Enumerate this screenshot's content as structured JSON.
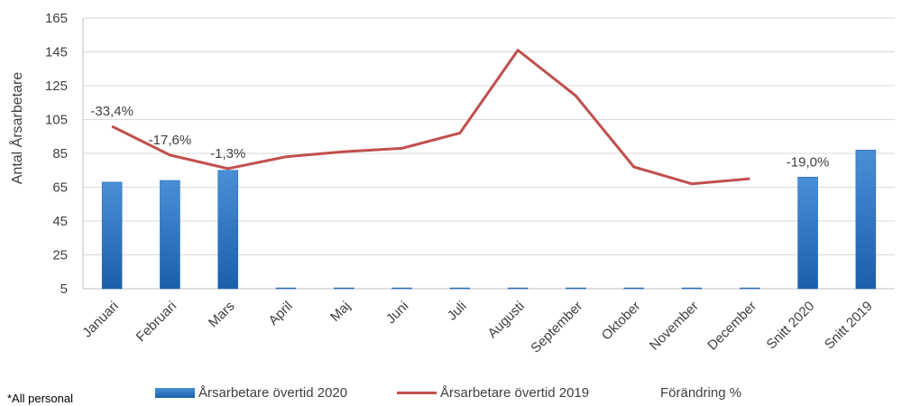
{
  "footnote": "*All personal",
  "legend": {
    "bar_label": "Årsarbetare övertid 2020",
    "line_label": "Årsarbetare övertid  2019",
    "change_label": "Förändring %"
  },
  "colors": {
    "bar": "#2e75c8",
    "line": "#c0504d",
    "grid": "#d9d9d9"
  },
  "chart_data": {
    "type": "bar",
    "ylabel": "Antal Årsarbetare",
    "ylim": [
      5,
      165
    ],
    "yticks": [
      5,
      25,
      45,
      65,
      85,
      105,
      125,
      145,
      165
    ],
    "categories": [
      "Januari",
      "Februari",
      "Mars",
      "April",
      "Maj",
      "Juni",
      "Juli",
      "Augusti",
      "September",
      "Oktober",
      "November",
      "December",
      "Snitt 2020",
      "Snitt 2019"
    ],
    "series": [
      {
        "name": "Årsarbetare övertid 2020",
        "type": "bar",
        "values": [
          68,
          69,
          75,
          5.5,
          5.5,
          5.5,
          5.5,
          5.5,
          5.5,
          5.5,
          5.5,
          5.5,
          71,
          87
        ]
      },
      {
        "name": "Årsarbetare övertid  2019",
        "type": "line",
        "values": [
          101,
          84,
          76,
          83,
          86,
          88,
          97,
          146,
          119,
          77,
          67,
          70,
          null,
          null
        ]
      }
    ],
    "annotations": [
      {
        "category": "Januari",
        "text": "-33,4%"
      },
      {
        "category": "Februari",
        "text": "-17,6%"
      },
      {
        "category": "Mars",
        "text": "-1,3%"
      },
      {
        "category": "Snitt 2020",
        "text": "-19,0%"
      }
    ]
  }
}
